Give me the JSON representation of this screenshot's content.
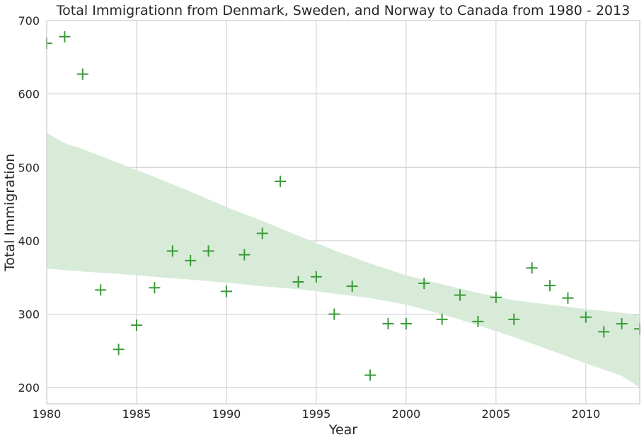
{
  "chart_data": {
    "type": "scatter",
    "title": "Total Immigrationn from Denmark, Sweden, and Norway to Canada from 1980 - 2013",
    "xlabel": "Year",
    "ylabel": "Total Immigration",
    "xlim": [
      1980,
      2013
    ],
    "ylim": [
      178,
      700
    ],
    "xticks": [
      1980,
      1985,
      1990,
      1995,
      2000,
      2005,
      2010
    ],
    "yticks": [
      200,
      300,
      400,
      500,
      600,
      700
    ],
    "grid": true,
    "colors": {
      "marker": "#3a9a3a",
      "band": "#d8ebd8",
      "grid": "#cccccc"
    },
    "x": [
      1980,
      1981,
      1982,
      1983,
      1984,
      1985,
      1986,
      1987,
      1988,
      1989,
      1990,
      1991,
      1992,
      1993,
      1994,
      1995,
      1996,
      1997,
      1998,
      1999,
      2000,
      2001,
      2002,
      2003,
      2004,
      2005,
      2006,
      2007,
      2008,
      2009,
      2010,
      2011,
      2012,
      2013
    ],
    "values": [
      669,
      678,
      627,
      333,
      252,
      285,
      336,
      386,
      373,
      386,
      331,
      381,
      410,
      481,
      344,
      351,
      300,
      338,
      217,
      287,
      287,
      342,
      293,
      326,
      290,
      323,
      293,
      363,
      339,
      322,
      296,
      276,
      287,
      280
    ],
    "confidence_band": {
      "x": [
        1980,
        1981,
        1982,
        1984,
        1986,
        1988,
        1990,
        1992,
        1994,
        1996,
        1998,
        2000,
        2002,
        2004,
        2006,
        2008,
        2010,
        2012,
        2013
      ],
      "upper": [
        547,
        533,
        525,
        506,
        487,
        467,
        446,
        427,
        407,
        387,
        369,
        353,
        341,
        329,
        319,
        313,
        307,
        302,
        299
      ],
      "lower": [
        362,
        360,
        358,
        355,
        351,
        347,
        343,
        338,
        334,
        328,
        322,
        313,
        300,
        285,
        269,
        251,
        233,
        216,
        200
      ]
    }
  }
}
